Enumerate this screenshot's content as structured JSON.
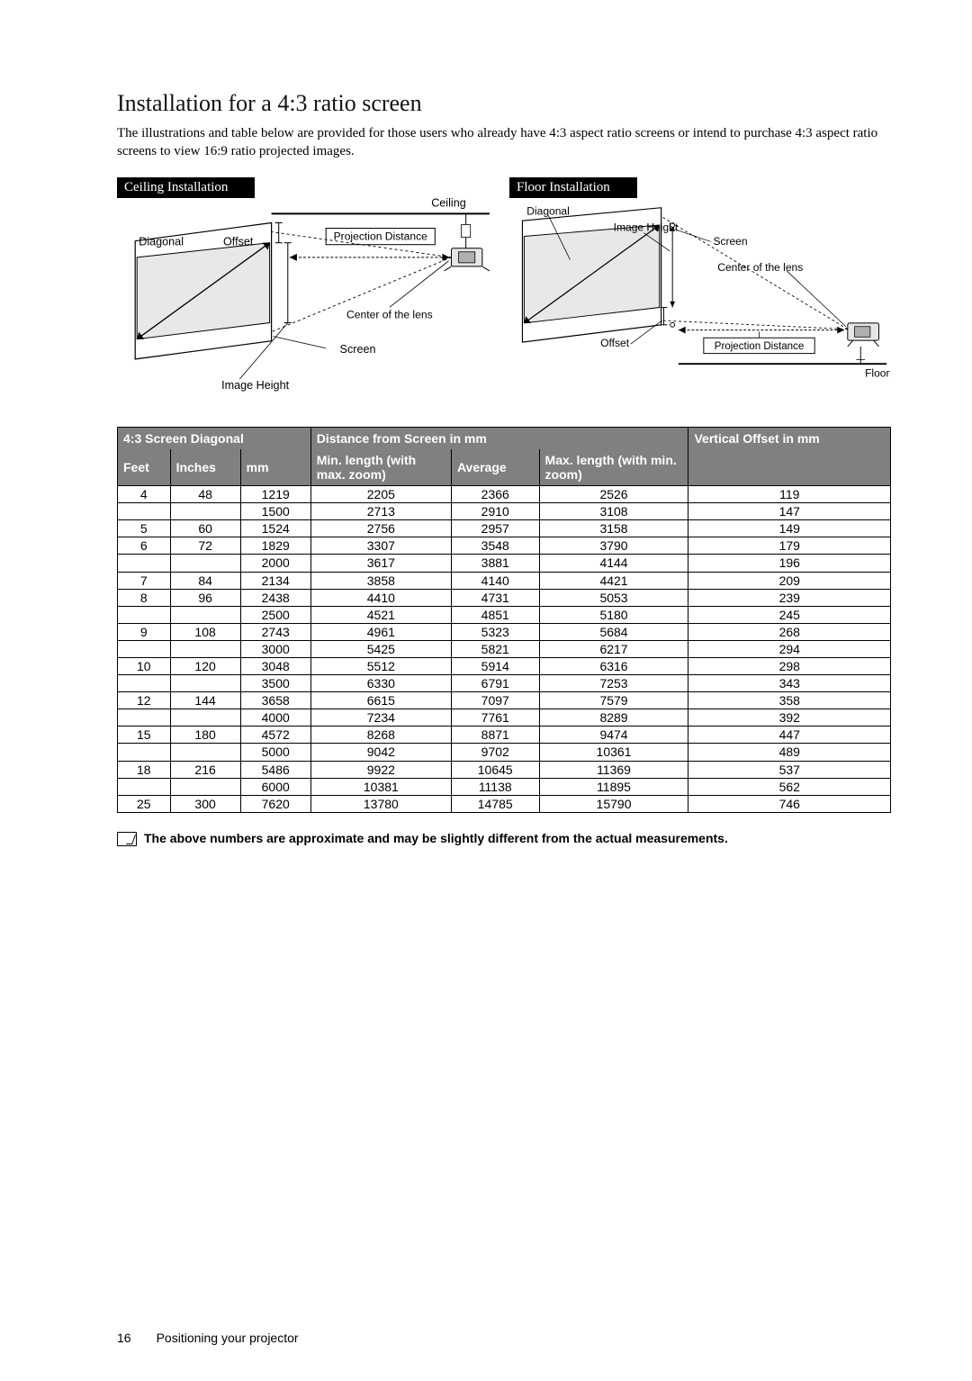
{
  "title": "Installation for a 4:3 ratio screen",
  "intro": "The illustrations and table below are provided for those users who already have 4:3 aspect ratio screens or intend to purchase 4:3 aspect ratio screens to view 16:9 ratio projected images.",
  "diagrams": {
    "ceiling": {
      "title": "Ceiling Installation",
      "labels": {
        "ceiling": "Ceiling",
        "diagonal": "Diagonal",
        "offset": "Offset",
        "projection_distance": "Projection Distance",
        "center_of_lens": "Center of the lens",
        "screen": "Screen",
        "image_height": "Image Height"
      }
    },
    "floor": {
      "title": "Floor Installation",
      "labels": {
        "floor": "Floor",
        "diagonal": "Diagonal",
        "offset": "Offset",
        "projection_distance": "Projection Distance",
        "center_of_lens": "Center of the lens",
        "screen": "Screen",
        "image_height": "Image Height"
      }
    }
  },
  "table": {
    "header_group_diagonal": "4:3 Screen Diagonal",
    "header_group_distance": "Distance from Screen in mm",
    "col_feet": "Feet",
    "col_inches": "Inches",
    "col_mm": "mm",
    "col_min": "Min. length (with max. zoom)",
    "col_avg": "Average",
    "col_max": "Max. length (with min. zoom)",
    "col_offset": "Vertical Offset in mm",
    "col_widths_pct": [
      6,
      8,
      8,
      16,
      10,
      17,
      23
    ],
    "rows": [
      {
        "feet": "4",
        "inches": "48",
        "mm": "1219",
        "min": "2205",
        "avg": "2366",
        "max": "2526",
        "off": "119"
      },
      {
        "feet": "",
        "inches": "",
        "mm": "1500",
        "min": "2713",
        "avg": "2910",
        "max": "3108",
        "off": "147"
      },
      {
        "feet": "5",
        "inches": "60",
        "mm": "1524",
        "min": "2756",
        "avg": "2957",
        "max": "3158",
        "off": "149"
      },
      {
        "feet": "6",
        "inches": "72",
        "mm": "1829",
        "min": "3307",
        "avg": "3548",
        "max": "3790",
        "off": "179"
      },
      {
        "feet": "",
        "inches": "",
        "mm": "2000",
        "min": "3617",
        "avg": "3881",
        "max": "4144",
        "off": "196"
      },
      {
        "feet": "7",
        "inches": "84",
        "mm": "2134",
        "min": "3858",
        "avg": "4140",
        "max": "4421",
        "off": "209"
      },
      {
        "feet": "8",
        "inches": "96",
        "mm": "2438",
        "min": "4410",
        "avg": "4731",
        "max": "5053",
        "off": "239"
      },
      {
        "feet": "",
        "inches": "",
        "mm": "2500",
        "min": "4521",
        "avg": "4851",
        "max": "5180",
        "off": "245"
      },
      {
        "feet": "9",
        "inches": "108",
        "mm": "2743",
        "min": "4961",
        "avg": "5323",
        "max": "5684",
        "off": "268"
      },
      {
        "feet": "",
        "inches": "",
        "mm": "3000",
        "min": "5425",
        "avg": "5821",
        "max": "6217",
        "off": "294"
      },
      {
        "feet": "10",
        "inches": "120",
        "mm": "3048",
        "min": "5512",
        "avg": "5914",
        "max": "6316",
        "off": "298"
      },
      {
        "feet": "",
        "inches": "",
        "mm": "3500",
        "min": "6330",
        "avg": "6791",
        "max": "7253",
        "off": "343"
      },
      {
        "feet": "12",
        "inches": "144",
        "mm": "3658",
        "min": "6615",
        "avg": "7097",
        "max": "7579",
        "off": "358"
      },
      {
        "feet": "",
        "inches": "",
        "mm": "4000",
        "min": "7234",
        "avg": "7761",
        "max": "8289",
        "off": "392"
      },
      {
        "feet": "15",
        "inches": "180",
        "mm": "4572",
        "min": "8268",
        "avg": "8871",
        "max": "9474",
        "off": "447"
      },
      {
        "feet": "",
        "inches": "",
        "mm": "5000",
        "min": "9042",
        "avg": "9702",
        "max": "10361",
        "off": "489"
      },
      {
        "feet": "18",
        "inches": "216",
        "mm": "5486",
        "min": "9922",
        "avg": "10645",
        "max": "11369",
        "off": "537"
      },
      {
        "feet": "",
        "inches": "",
        "mm": "6000",
        "min": "10381",
        "avg": "11138",
        "max": "11895",
        "off": "562"
      },
      {
        "feet": "25",
        "inches": "300",
        "mm": "7620",
        "min": "13780",
        "avg": "14785",
        "max": "15790",
        "off": "746"
      }
    ]
  },
  "note": "The above numbers are approximate and may be slightly different from the actual measurements.",
  "footer": {
    "page": "16",
    "section": "Positioning your projector"
  }
}
